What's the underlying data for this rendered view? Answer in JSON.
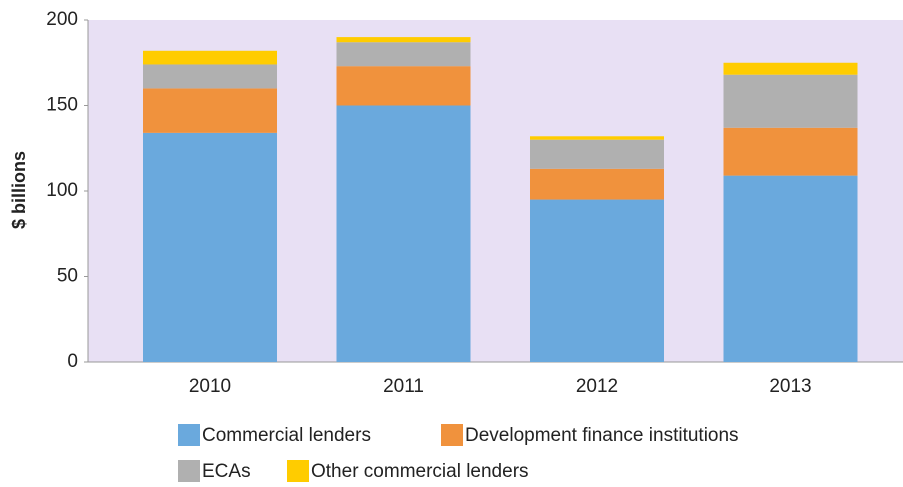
{
  "chart_data": {
    "type": "stacked_bar",
    "y_label": "$ billions",
    "categories": [
      "2010",
      "2011",
      "2012",
      "2013"
    ],
    "series": [
      {
        "name": "Commercial lenders",
        "color": "#6aa9dd",
        "values": [
          134,
          150,
          95,
          109
        ]
      },
      {
        "name": "Development finance institutions",
        "color": "#f0923d",
        "values": [
          26,
          23,
          18,
          28
        ]
      },
      {
        "name": "ECAs",
        "color": "#b0b0b0",
        "values": [
          14,
          14,
          17,
          31
        ]
      },
      {
        "name": "Other commercial lenders",
        "color": "#ffcc00",
        "values": [
          8,
          3,
          2,
          7
        ]
      }
    ],
    "ylim": [
      0,
      200
    ],
    "yticks": [
      0,
      50,
      100,
      150,
      200
    ]
  }
}
